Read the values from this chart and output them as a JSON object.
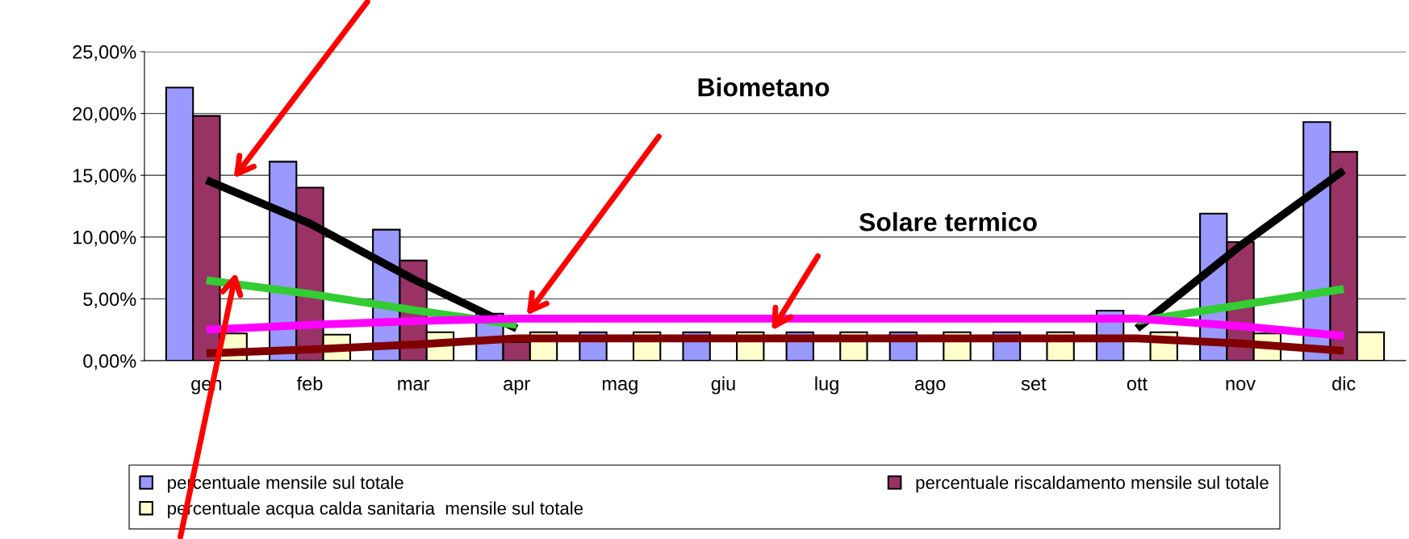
{
  "chart_data": {
    "type": "bar",
    "categories": [
      "gen",
      "feb",
      "mar",
      "apr",
      "mag",
      "giu",
      "lug",
      "ago",
      "set",
      "ott",
      "nov",
      "dic"
    ],
    "series": [
      {
        "name": "percentuale mensile sul totale",
        "color": "#9999ff",
        "values": [
          22.1,
          16.1,
          10.6,
          3.8,
          2.3,
          2.3,
          2.3,
          2.3,
          2.3,
          4.05,
          11.9,
          19.3
        ]
      },
      {
        "name": "percentuale riscaldamento mensile sul totale",
        "color": "#993366",
        "values": [
          19.8,
          14.0,
          8.1,
          1.5,
          0,
          0,
          0,
          0,
          0,
          null,
          9.6,
          16.9
        ]
      },
      {
        "name": "percentuale acqua calda sanitaria  mensile sul totale",
        "color": "#ffffcc",
        "values": [
          2.2,
          2.1,
          2.3,
          2.3,
          2.3,
          2.3,
          2.3,
          2.3,
          2.3,
          2.3,
          2.2,
          2.3
        ]
      },
      {
        "type": "line",
        "color": "#000000",
        "values": [
          14.6,
          11.1,
          6.6,
          2.6,
          null,
          null,
          null,
          null,
          null,
          2.6,
          9.3,
          15.4
        ]
      },
      {
        "type": "line",
        "color": "#33cc33",
        "values": [
          6.5,
          5.4,
          4.1,
          2.9,
          null,
          null,
          null,
          null,
          null,
          3.2,
          4.5,
          5.8
        ]
      },
      {
        "type": "line",
        "color": "#ff00ff",
        "values": [
          2.5,
          2.9,
          3.2,
          3.4,
          3.4,
          3.4,
          3.4,
          3.4,
          3.4,
          3.4,
          2.8,
          2.0
        ]
      },
      {
        "type": "line",
        "color": "#800000",
        "values": [
          0.6,
          0.9,
          1.3,
          1.8,
          1.8,
          1.8,
          1.8,
          1.8,
          1.8,
          1.8,
          1.4,
          0.8
        ]
      }
    ],
    "ylim": [
      0,
      25
    ],
    "yticks": [
      {
        "value": 0,
        "label": "0,00%"
      },
      {
        "value": 5,
        "label": "5,00%"
      },
      {
        "value": 10,
        "label": "10,00%"
      },
      {
        "value": 15,
        "label": "15,00%"
      },
      {
        "value": 20,
        "label": "20,00%"
      },
      {
        "value": 25,
        "label": "25,00%"
      }
    ],
    "annotations": [
      "Biometano",
      "Solare termico"
    ],
    "grid": "y",
    "legend": "bottom",
    "marker": "none",
    "line_style": "solid"
  }
}
